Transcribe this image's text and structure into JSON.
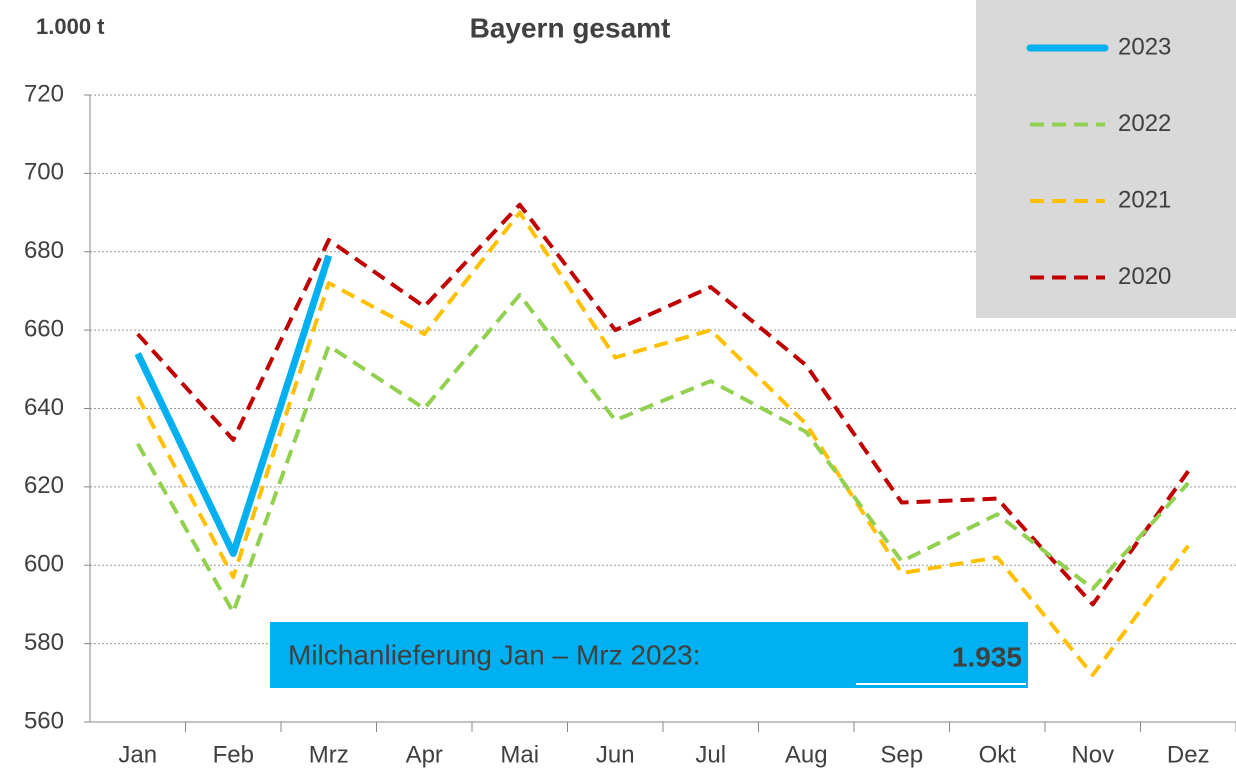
{
  "chart_data": {
    "type": "line",
    "title": "Bayern gesamt",
    "y_label": "1.000 t",
    "categories": [
      "Jan",
      "Feb",
      "Mrz",
      "Apr",
      "Mai",
      "Jun",
      "Jul",
      "Aug",
      "Sep",
      "Okt",
      "Nov",
      "Dez"
    ],
    "series": [
      {
        "name": "2023",
        "color": "#00b0f0",
        "dashed": false,
        "values": [
          654,
          603,
          679,
          null,
          null,
          null,
          null,
          null,
          null,
          null,
          null,
          null
        ]
      },
      {
        "name": "2022",
        "color": "#92d050",
        "dashed": true,
        "values": [
          631,
          588,
          656,
          640,
          669,
          637,
          647,
          634,
          601,
          613,
          594,
          621
        ]
      },
      {
        "name": "2021",
        "color": "#ffc000",
        "dashed": true,
        "values": [
          643,
          597,
          672,
          659,
          690,
          653,
          660,
          636,
          598,
          602,
          572,
          605
        ]
      },
      {
        "name": "2020",
        "color": "#c00000",
        "dashed": true,
        "values": [
          659,
          632,
          683,
          666,
          692,
          660,
          671,
          651,
          616,
          617,
          590,
          624
        ]
      }
    ],
    "ylim": [
      560,
      720
    ],
    "yticks": [
      560,
      580,
      600,
      620,
      640,
      660,
      680,
      700,
      720
    ],
    "grid": true,
    "annotation": {
      "text": "Milchanlieferung Jan – Mrz 2023:",
      "value_label": "1.935"
    }
  }
}
